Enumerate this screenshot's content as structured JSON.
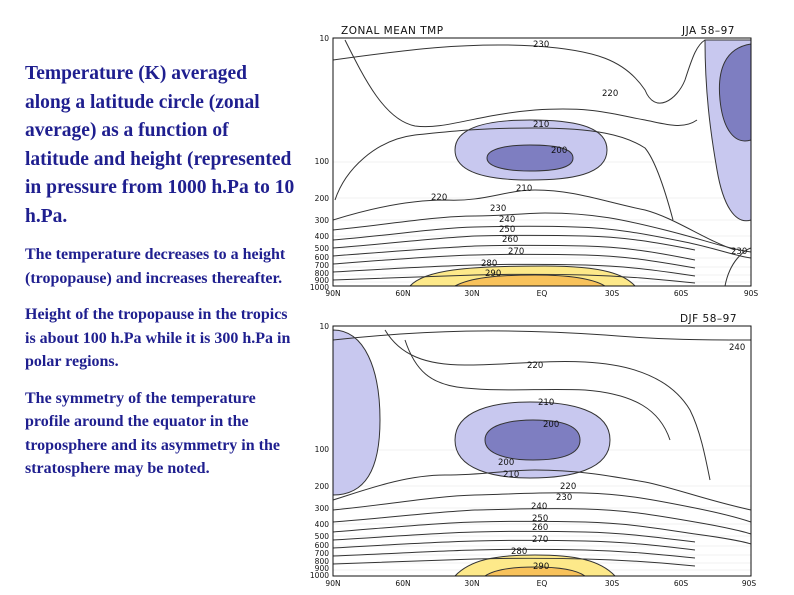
{
  "text": {
    "lead": "Temperature (K) averaged along a latitude circle (zonal average) as a function of latitude and height (represented in pressure from 1000 h.Pa to 10 h.Pa.",
    "para1": "The temperature decreases to a height (tropopause) and increases thereafter.",
    "para2": "Height of the tropopause in the tropics is about 100 h.Pa while it is 300 h.Pa in polar regions.",
    "para3": "The symmetry of the temperature profile around the equator in the troposphere and its asymmetry in the stratosphere may be noted."
  },
  "chart_data": [
    {
      "type": "contour",
      "title": "ZONAL MEAN TMP",
      "subtitle": "JJA 58–97",
      "x_ticks": [
        "90N",
        "60N",
        "30N",
        "EQ",
        "30S",
        "60S",
        "90S"
      ],
      "y_ticks": [
        "10",
        "100",
        "200",
        "300",
        "400",
        "500",
        "600",
        "700",
        "800",
        "900",
        "1000"
      ],
      "y_scale": "log",
      "contour_labels": [
        "230",
        "220",
        "210",
        "200",
        "210",
        "220",
        "230",
        "240",
        "250",
        "260",
        "270",
        "280",
        "290",
        "230"
      ],
      "colors": {
        "cold_light": "#c8c8ef",
        "cold_dark": "#7e7ec1",
        "warm_light": "#fde98a",
        "warm_dark": "#f8c25b"
      }
    },
    {
      "type": "contour",
      "title": "",
      "subtitle": "DJF 58–97",
      "x_ticks": [
        "90N",
        "60N",
        "30N",
        "EQ",
        "30S",
        "60S",
        "90S"
      ],
      "y_ticks": [
        "10",
        "100",
        "200",
        "300",
        "400",
        "500",
        "600",
        "700",
        "800",
        "900",
        "1000"
      ],
      "y_scale": "log",
      "contour_labels": [
        "240",
        "220",
        "210",
        "200",
        "200",
        "210",
        "220",
        "230",
        "240",
        "250",
        "260",
        "270",
        "280",
        "290"
      ],
      "colors": {
        "cold_light": "#c8c8ef",
        "cold_dark": "#7e7ec1",
        "warm_light": "#fde98a",
        "warm_dark": "#f8c25b"
      }
    }
  ]
}
